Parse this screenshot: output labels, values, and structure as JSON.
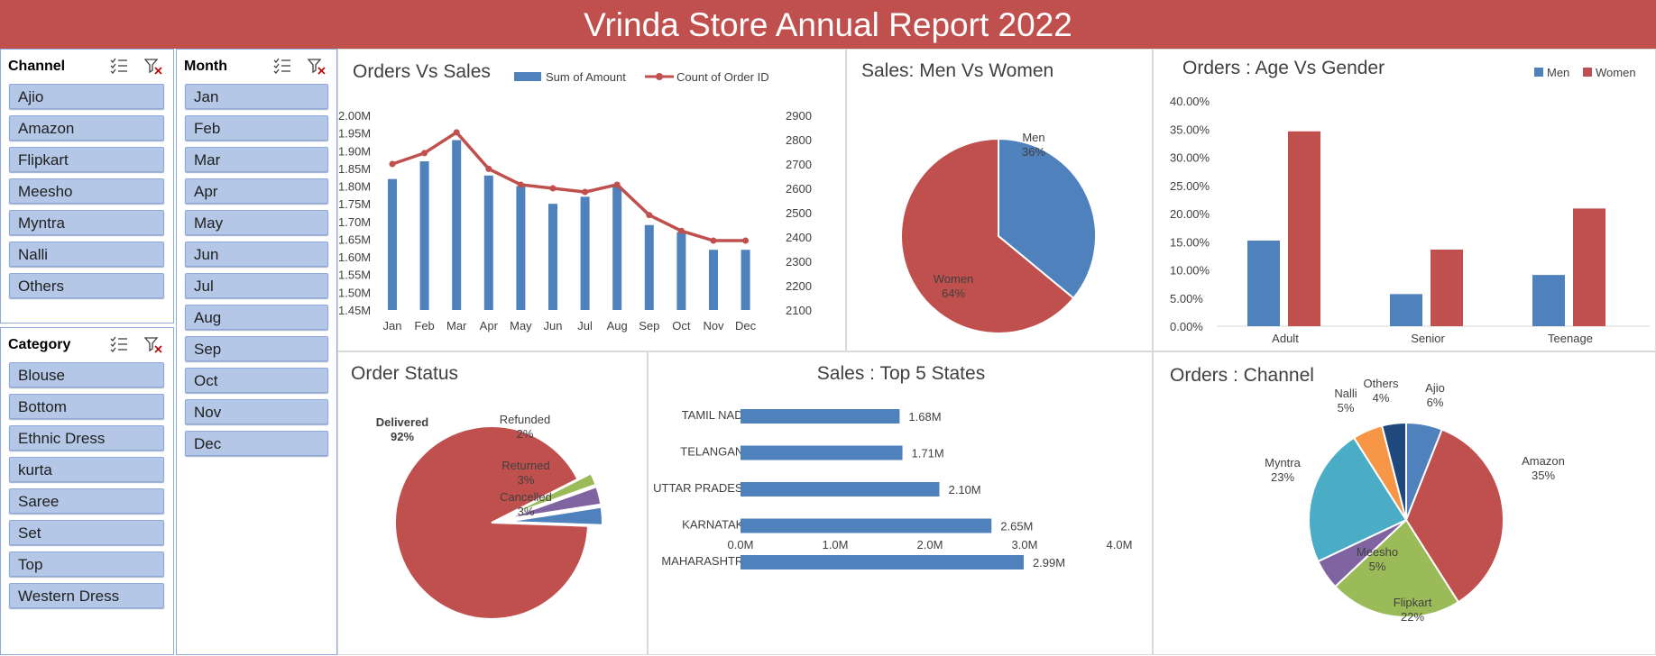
{
  "header": {
    "title": "Vrinda Store Annual Report 2022"
  },
  "slicers": {
    "channel": {
      "title": "Channel",
      "items": [
        "Ajio",
        "Amazon",
        "Flipkart",
        "Meesho",
        "Myntra",
        "Nalli",
        "Others"
      ]
    },
    "month": {
      "title": "Month",
      "items": [
        "Jan",
        "Feb",
        "Mar",
        "Apr",
        "May",
        "Jun",
        "Jul",
        "Aug",
        "Sep",
        "Oct",
        "Nov",
        "Dec"
      ]
    },
    "category": {
      "title": "Category",
      "items": [
        "Blouse",
        "Bottom",
        "Ethnic Dress",
        "kurta",
        "Saree",
        "Set",
        "Top",
        "Western Dress"
      ]
    }
  },
  "chart_data": [
    {
      "id": "orders_vs_sales",
      "type": "bar",
      "title": "Orders Vs Sales",
      "categories": [
        "Jan",
        "Feb",
        "Mar",
        "Apr",
        "May",
        "Jun",
        "Jul",
        "Aug",
        "Sep",
        "Oct",
        "Nov",
        "Dec"
      ],
      "series": [
        {
          "name": "Sum of Amount",
          "type": "bar",
          "axis": "left",
          "color": "#4f81bd",
          "values": [
            1.82,
            1.87,
            1.93,
            1.83,
            1.8,
            1.75,
            1.77,
            1.8,
            1.69,
            1.67,
            1.62,
            1.62
          ]
        },
        {
          "name": "Count of Order ID",
          "type": "line",
          "axis": "right",
          "color": "#c0504d",
          "values": [
            2700,
            2745,
            2830,
            2680,
            2615,
            2600,
            2585,
            2615,
            2490,
            2425,
            2385,
            2385
          ]
        }
      ],
      "y_left": {
        "min": 1.45,
        "max": 2.0,
        "step": 0.05,
        "suffix": "M"
      },
      "y_right": {
        "min": 2100,
        "max": 2900,
        "step": 100
      },
      "left_ticks": [
        "2.00M",
        "1.95M",
        "1.90M",
        "1.85M",
        "1.80M",
        "1.75M",
        "1.70M",
        "1.65M",
        "1.60M",
        "1.55M",
        "1.50M",
        "1.45M"
      ],
      "right_ticks": [
        "2900",
        "2800",
        "2700",
        "2600",
        "2500",
        "2400",
        "2300",
        "2200",
        "2100"
      ],
      "legend": "top",
      "grid": false
    },
    {
      "id": "sales_men_women",
      "type": "pie",
      "title": "Sales: Men Vs Women",
      "slices": [
        {
          "label": "Men",
          "value": 36,
          "pct": "36%",
          "color": "#4f81bd"
        },
        {
          "label": "Women",
          "value": 64,
          "pct": "64%",
          "color": "#c0504d"
        }
      ]
    },
    {
      "id": "orders_age_gender",
      "type": "bar",
      "title": "Orders : Age Vs Gender",
      "categories": [
        "Adult",
        "Senior",
        "Teenage"
      ],
      "series": [
        {
          "name": "Men",
          "color": "#4f81bd",
          "values": [
            15.2,
            5.7,
            9.1
          ]
        },
        {
          "name": "Women",
          "color": "#c0504d",
          "values": [
            34.6,
            13.6,
            20.9
          ]
        }
      ],
      "y_ticks": [
        "40.00%",
        "35.00%",
        "30.00%",
        "25.00%",
        "20.00%",
        "15.00%",
        "10.00%",
        "5.00%",
        "0.00%"
      ],
      "ylim": [
        0,
        40
      ],
      "legend": "top-right",
      "grid": false
    },
    {
      "id": "order_status",
      "type": "pie",
      "title": "Order Status",
      "slices": [
        {
          "label": "Delivered",
          "value": 92,
          "pct": "92%",
          "color": "#c0504d"
        },
        {
          "label": "Refunded",
          "value": 2,
          "pct": "2%",
          "color": "#9bbb59"
        },
        {
          "label": "Returned",
          "value": 3,
          "pct": "3%",
          "color": "#8064a2"
        },
        {
          "label": "Cancelled",
          "value": 3,
          "pct": "3%",
          "color": "#4f81bd"
        }
      ]
    },
    {
      "id": "sales_top_states",
      "type": "bar",
      "orientation": "horizontal",
      "title": "Sales : Top 5 States",
      "categories": [
        "TAMIL NADU",
        "TELANGANA",
        "UTTAR PRADESH",
        "KARNATAKA",
        "MAHARASHTRA"
      ],
      "values": [
        1.68,
        1.71,
        2.1,
        2.65,
        2.99
      ],
      "value_labels": [
        "1.68M",
        "1.71M",
        "2.10M",
        "2.65M",
        "2.99M"
      ],
      "x_ticks": [
        "0.0M",
        "1.0M",
        "2.0M",
        "3.0M",
        "4.0M"
      ],
      "xlim": [
        0,
        4
      ],
      "color": "#4f81bd"
    },
    {
      "id": "orders_channel",
      "type": "pie",
      "title": "Orders : Channel",
      "slices": [
        {
          "label": "Ajio",
          "value": 6,
          "pct": "6%",
          "color": "#4f81bd"
        },
        {
          "label": "Amazon",
          "value": 35,
          "pct": "35%",
          "color": "#c0504d"
        },
        {
          "label": "Flipkart",
          "value": 22,
          "pct": "22%",
          "color": "#9bbb59"
        },
        {
          "label": "Meesho",
          "value": 5,
          "pct": "5%",
          "color": "#8064a2"
        },
        {
          "label": "Myntra",
          "value": 23,
          "pct": "23%",
          "color": "#4bacc6"
        },
        {
          "label": "Nalli",
          "value": 5,
          "pct": "5%",
          "color": "#f79646"
        },
        {
          "label": "Others",
          "value": 4,
          "pct": "4%",
          "color": "#1f497d"
        }
      ]
    }
  ]
}
